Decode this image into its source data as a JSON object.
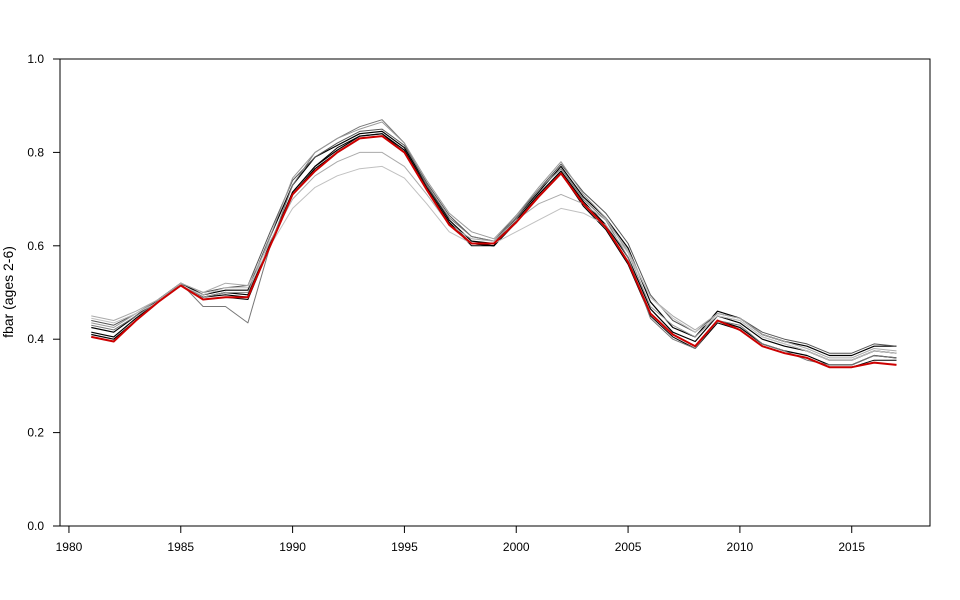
{
  "chart_data": {
    "type": "line",
    "title": "",
    "xlabel": "",
    "ylabel": "fbar (ages 2-6)",
    "xlim": [
      1980,
      2017
    ],
    "ylim": [
      0,
      1.0
    ],
    "x_ticks": [
      "1980",
      "1985",
      "1990",
      "1995",
      "2000",
      "2005",
      "2010",
      "2015"
    ],
    "y_ticks": [
      "0.0",
      "0.2",
      "0.4",
      "0.6",
      "0.8",
      "1.0"
    ],
    "grid": false,
    "legend": "none",
    "x": [
      1981,
      1982,
      1983,
      1984,
      1985,
      1986,
      1987,
      1988,
      1989,
      1990,
      1991,
      1992,
      1993,
      1994,
      1995,
      1996,
      1997,
      1998,
      1999,
      2000,
      2001,
      2002,
      2003,
      2004,
      2005,
      2006,
      2007,
      2008,
      2009,
      2010,
      2011,
      2012,
      2013,
      2014,
      2015,
      2016,
      2017
    ],
    "series": [
      {
        "color": "#000000",
        "width": 1.2,
        "values": [
          0.425,
          0.415,
          0.45,
          0.485,
          0.52,
          0.495,
          0.505,
          0.505,
          0.62,
          0.73,
          0.79,
          0.815,
          0.84,
          0.845,
          0.81,
          0.73,
          0.655,
          0.61,
          0.605,
          0.66,
          0.715,
          0.77,
          0.705,
          0.66,
          0.595,
          0.48,
          0.425,
          0.405,
          0.46,
          0.445,
          0.41,
          0.395,
          0.385,
          0.365,
          0.365,
          0.385,
          0.385
        ]
      },
      {
        "color": "#000000",
        "width": 1.2,
        "values": [
          0.415,
          0.405,
          0.445,
          0.48,
          0.515,
          0.49,
          0.5,
          0.495,
          0.605,
          0.715,
          0.77,
          0.805,
          0.835,
          0.84,
          0.805,
          0.725,
          0.65,
          0.605,
          0.6,
          0.655,
          0.71,
          0.76,
          0.695,
          0.645,
          0.575,
          0.465,
          0.415,
          0.395,
          0.45,
          0.435,
          0.4,
          0.385,
          0.375,
          0.355,
          0.355,
          0.375,
          0.37
        ]
      },
      {
        "color": "#000000",
        "width": 1.2,
        "values": [
          0.41,
          0.4,
          0.44,
          0.48,
          0.515,
          0.49,
          0.495,
          0.49,
          0.6,
          0.71,
          0.765,
          0.8,
          0.83,
          0.835,
          0.8,
          0.72,
          0.645,
          0.605,
          0.6,
          0.65,
          0.705,
          0.755,
          0.69,
          0.64,
          0.565,
          0.455,
          0.41,
          0.385,
          0.44,
          0.425,
          0.39,
          0.375,
          0.365,
          0.345,
          0.345,
          0.365,
          0.36
        ]
      },
      {
        "color": "#000000",
        "width": 1.0,
        "values": [
          0.405,
          0.395,
          0.44,
          0.48,
          0.515,
          0.485,
          0.49,
          0.485,
          0.6,
          0.715,
          0.77,
          0.81,
          0.835,
          0.84,
          0.8,
          0.72,
          0.65,
          0.6,
          0.6,
          0.65,
          0.705,
          0.755,
          0.685,
          0.635,
          0.56,
          0.45,
          0.405,
          0.38,
          0.435,
          0.42,
          0.385,
          0.37,
          0.36,
          0.34,
          0.34,
          0.355,
          0.355
        ]
      },
      {
        "color": "#555555",
        "width": 1.0,
        "values": [
          0.44,
          0.43,
          0.455,
          0.485,
          0.52,
          0.5,
          0.51,
          0.515,
          0.63,
          0.74,
          0.79,
          0.82,
          0.845,
          0.85,
          0.815,
          0.735,
          0.665,
          0.62,
          0.61,
          0.665,
          0.72,
          0.775,
          0.715,
          0.67,
          0.605,
          0.495,
          0.44,
          0.415,
          0.455,
          0.445,
          0.415,
          0.4,
          0.39,
          0.37,
          0.37,
          0.39,
          0.385
        ]
      },
      {
        "color": "#777777",
        "width": 1.0,
        "values": [
          0.43,
          0.42,
          0.45,
          0.48,
          0.52,
          0.47,
          0.47,
          0.435,
          0.6,
          0.73,
          0.8,
          0.83,
          0.855,
          0.87,
          0.82,
          0.73,
          0.66,
          0.62,
          0.61,
          0.66,
          0.72,
          0.765,
          0.7,
          0.655,
          0.575,
          0.445,
          0.4,
          0.38,
          0.44,
          0.43,
          0.39,
          0.375,
          0.355,
          0.345,
          0.345,
          0.365,
          0.36
        ]
      },
      {
        "color": "#999999",
        "width": 1.0,
        "values": [
          0.435,
          0.425,
          0.455,
          0.485,
          0.515,
          0.49,
          0.5,
          0.5,
          0.62,
          0.745,
          0.8,
          0.83,
          0.85,
          0.865,
          0.82,
          0.74,
          0.67,
          0.63,
          0.615,
          0.665,
          0.725,
          0.78,
          0.71,
          0.66,
          0.585,
          0.47,
          0.43,
          0.405,
          0.45,
          0.44,
          0.405,
          0.39,
          0.375,
          0.355,
          0.355,
          0.375,
          0.37
        ]
      },
      {
        "color": "#aaaaaa",
        "width": 1.0,
        "values": [
          0.45,
          0.44,
          0.46,
          0.485,
          0.52,
          0.5,
          0.52,
          0.515,
          0.61,
          0.7,
          0.75,
          0.78,
          0.8,
          0.8,
          0.77,
          0.71,
          0.645,
          0.615,
          0.61,
          0.655,
          0.69,
          0.71,
          0.69,
          0.655,
          0.59,
          0.49,
          0.45,
          0.42,
          0.455,
          0.445,
          0.41,
          0.395,
          0.38,
          0.36,
          0.36,
          0.38,
          0.375
        ]
      },
      {
        "color": "#c0c0c0",
        "width": 1.0,
        "values": [
          0.445,
          0.435,
          0.455,
          0.48,
          0.515,
          0.495,
          0.51,
          0.51,
          0.6,
          0.68,
          0.725,
          0.75,
          0.765,
          0.77,
          0.745,
          0.69,
          0.63,
          0.605,
          0.605,
          0.63,
          0.655,
          0.68,
          0.67,
          0.645,
          0.585,
          0.49,
          0.445,
          0.415,
          0.45,
          0.44,
          0.405,
          0.39,
          0.375,
          0.355,
          0.355,
          0.375,
          0.37
        ]
      },
      {
        "color": "#cc0000",
        "width": 2.0,
        "values": [
          0.405,
          0.395,
          0.44,
          0.48,
          0.515,
          0.485,
          0.49,
          0.49,
          0.6,
          0.71,
          0.76,
          0.8,
          0.83,
          0.835,
          0.8,
          0.72,
          0.645,
          0.605,
          0.605,
          0.65,
          0.705,
          0.755,
          0.69,
          0.64,
          0.565,
          0.455,
          0.41,
          0.385,
          0.44,
          0.42,
          0.385,
          0.37,
          0.36,
          0.34,
          0.34,
          0.35,
          0.345
        ]
      }
    ]
  }
}
